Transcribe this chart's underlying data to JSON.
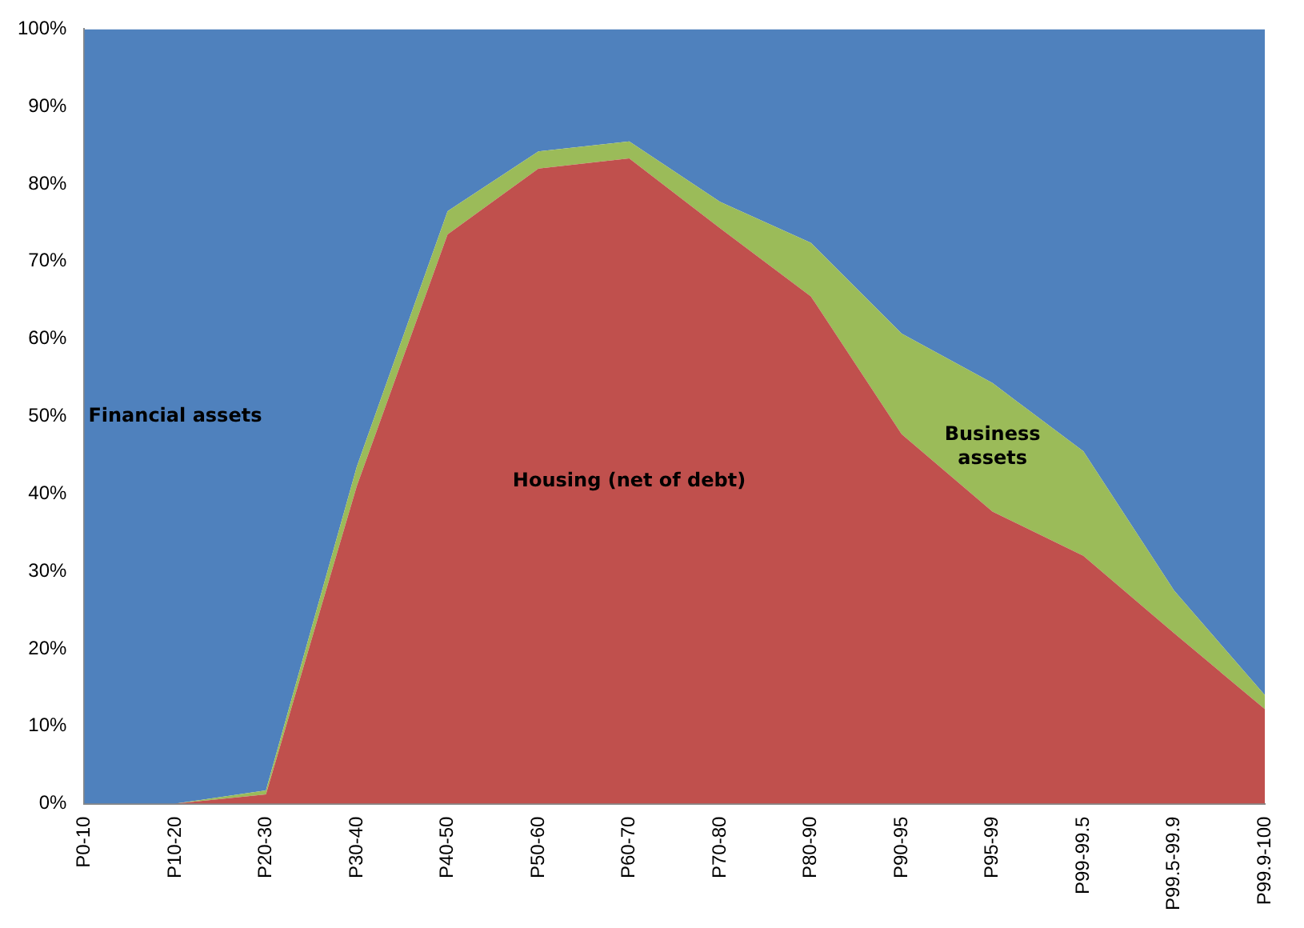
{
  "chart_data": {
    "type": "area",
    "stacked": true,
    "categories": [
      "P0-10",
      "P10-20",
      "P20-30",
      "P30-40",
      "P40-50",
      "P50-60",
      "P60-70",
      "P70-80",
      "P80-90",
      "P90-95",
      "P95-99",
      "P99-99.5",
      "P99.5-99.9",
      "P99.9-100"
    ],
    "series": [
      {
        "name": "Housing (net of debt)",
        "color": "#c0504d",
        "values": [
          0,
          0,
          1.2,
          41,
          73.5,
          82,
          83.3,
          74.3,
          65.5,
          47.7,
          37.7,
          32,
          22,
          12.2
        ]
      },
      {
        "name": "Business assets",
        "color": "#9bbb59",
        "values": [
          0,
          0,
          0.5,
          2.5,
          3,
          2.2,
          2.2,
          3.4,
          6.9,
          13,
          16.6,
          13.5,
          5.5,
          1.8
        ]
      },
      {
        "name": "Financial assets",
        "color": "#4f81bd",
        "values": [
          100,
          100,
          98.3,
          56.5,
          23.5,
          15.8,
          14.5,
          22.3,
          27.6,
          39.3,
          45.7,
          54.5,
          72.5,
          86
        ]
      }
    ],
    "ylim": [
      0,
      100
    ],
    "yticks": [
      {
        "value": 0,
        "label": "0%"
      },
      {
        "value": 10,
        "label": "10%"
      },
      {
        "value": 20,
        "label": "20%"
      },
      {
        "value": 30,
        "label": "30%"
      },
      {
        "value": 40,
        "label": "40%"
      },
      {
        "value": 50,
        "label": "50%"
      },
      {
        "value": 60,
        "label": "60%"
      },
      {
        "value": 70,
        "label": "70%"
      },
      {
        "value": 80,
        "label": "80%"
      },
      {
        "value": 90,
        "label": "90%"
      },
      {
        "value": 100,
        "label": "100%"
      }
    ],
    "grid": false,
    "legend": false
  }
}
